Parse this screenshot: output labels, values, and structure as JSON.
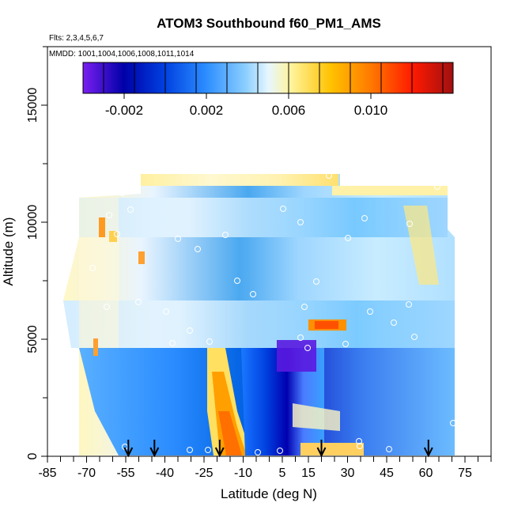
{
  "chart_data": {
    "type": "heatmap",
    "title": "ATOM3 Southbound f60_PM1_AMS",
    "subtitle_flights": "Flts: 2,3,4,5,6,7",
    "subtitle_dates": "MMDD: 1001,1004,1006,1008,1011,1014",
    "xlabel": "Latitude (deg N)",
    "ylabel": "Altitude (m)",
    "xlim": [
      -85,
      85
    ],
    "ylim": [
      0,
      17500
    ],
    "x_ticks": [
      -85,
      -70,
      -55,
      -40,
      -25,
      -10,
      5,
      15,
      30,
      45,
      60,
      75
    ],
    "y_ticks": [
      0,
      5000,
      10000,
      15000
    ],
    "colorbar": {
      "range": [
        -0.004,
        0.014
      ],
      "tick_values": [
        -0.002,
        0.002,
        0.006,
        0.01
      ],
      "tick_labels": [
        "-0.002",
        "0.002",
        "0.006",
        "0.010"
      ],
      "colors": [
        "#7a1ff0",
        "#0000a8",
        "#0040e0",
        "#2a8cff",
        "#5cb8ff",
        "#d8f0ff",
        "#fff4a0",
        "#ffc200",
        "#ff7800",
        "#ff1a00",
        "#d00000",
        "#a01010"
      ]
    },
    "profile_latitudes": [
      -54,
      -44,
      -19,
      20,
      61
    ],
    "notes": "Curtain of f60_PM1_AMS values vs latitude and altitude; circles mark observation points; arrows mark vertical profile locations."
  }
}
